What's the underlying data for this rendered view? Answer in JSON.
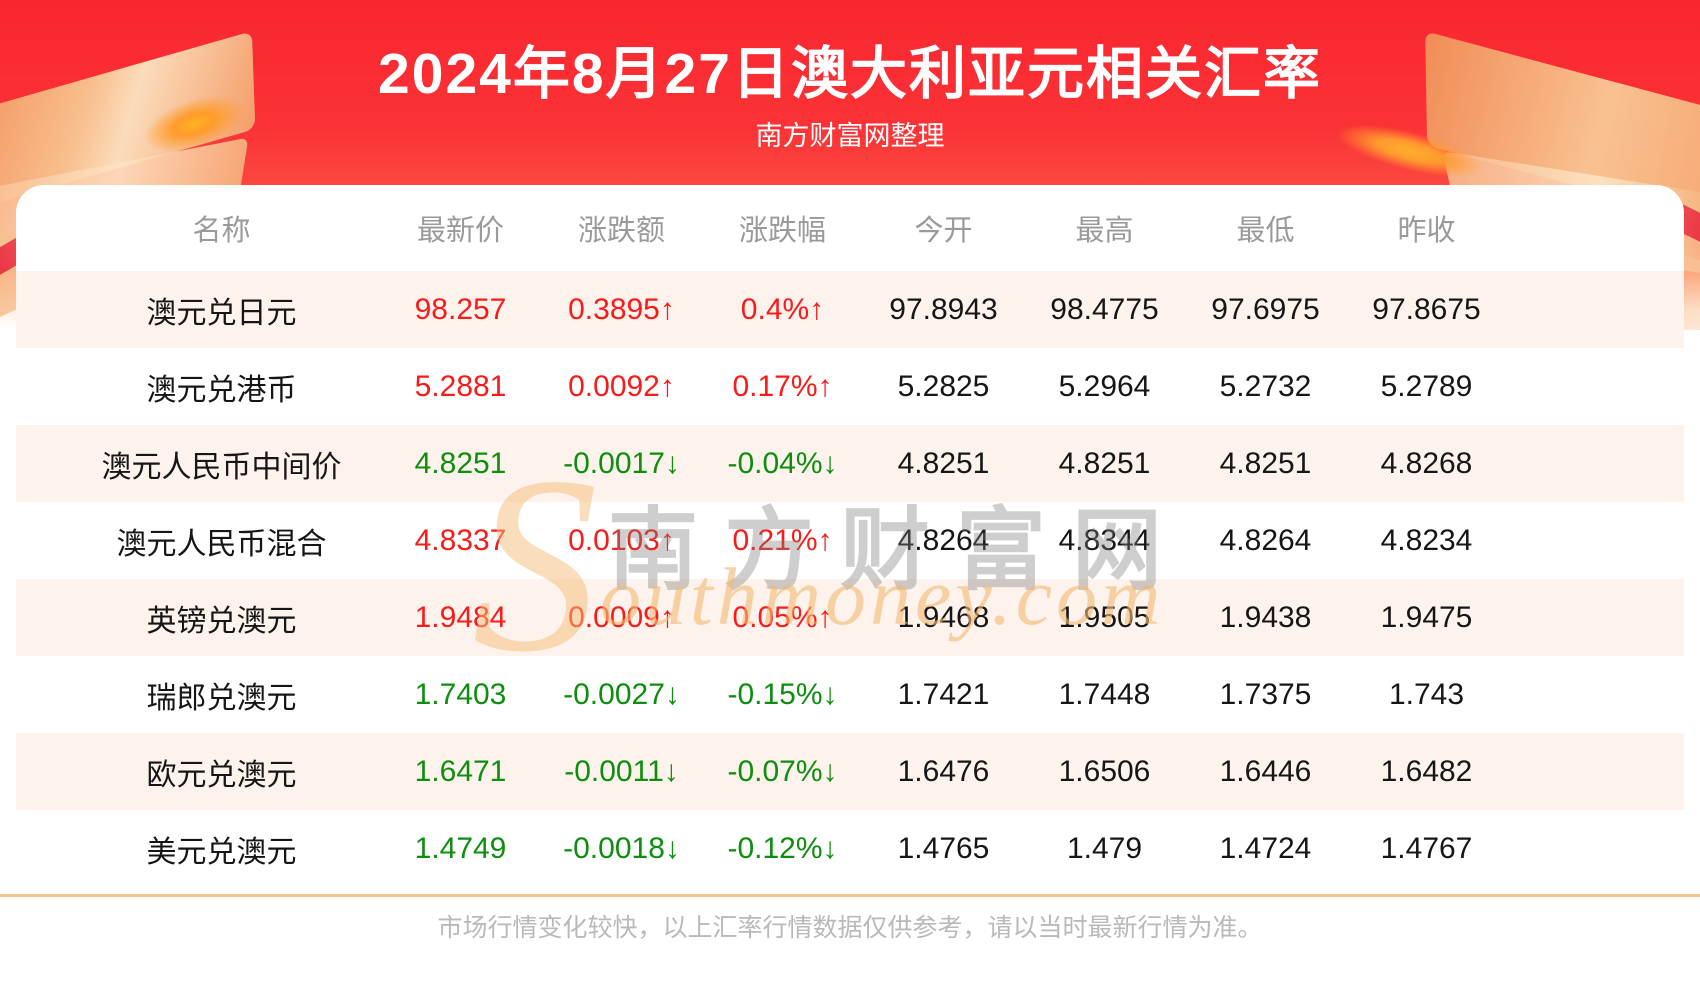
{
  "chart_data": {
    "type": "table",
    "title": "2024年8月27日澳大利亚元相关汇率",
    "subtitle": "南方财富网整理",
    "columns": [
      "名称",
      "最新价",
      "涨跌额",
      "涨跌幅",
      "今开",
      "最高",
      "最低",
      "昨收"
    ],
    "rows": [
      {
        "name": "澳元兑日元",
        "direction": "up",
        "values": [
          "98.257",
          "0.3895↑",
          "0.4%↑",
          "97.8943",
          "98.4775",
          "97.6975",
          "97.8675"
        ]
      },
      {
        "name": "澳元兑港币",
        "direction": "up",
        "values": [
          "5.2881",
          "0.0092↑",
          "0.17%↑",
          "5.2825",
          "5.2964",
          "5.2732",
          "5.2789"
        ]
      },
      {
        "name": "澳元人民币中间价",
        "direction": "down",
        "values": [
          "4.8251",
          "-0.0017↓",
          "-0.04%↓",
          "4.8251",
          "4.8251",
          "4.8251",
          "4.8268"
        ]
      },
      {
        "name": "澳元人民币混合",
        "direction": "up",
        "values": [
          "4.8337",
          "0.0103↑",
          "0.21%↑",
          "4.8264",
          "4.8344",
          "4.8264",
          "4.8234"
        ]
      },
      {
        "name": "英镑兑澳元",
        "direction": "up",
        "values": [
          "1.9484",
          "0.0009↑",
          "0.05%↑",
          "1.9468",
          "1.9505",
          "1.9438",
          "1.9475"
        ]
      },
      {
        "name": "瑞郎兑澳元",
        "direction": "down",
        "values": [
          "1.7403",
          "-0.0027↓",
          "-0.15%↓",
          "1.7421",
          "1.7448",
          "1.7375",
          "1.743"
        ]
      },
      {
        "name": "欧元兑澳元",
        "direction": "down",
        "values": [
          "1.6471",
          "-0.0011↓",
          "-0.07%↓",
          "1.6476",
          "1.6506",
          "1.6446",
          "1.6482"
        ]
      },
      {
        "name": "美元兑澳元",
        "direction": "down",
        "values": [
          "1.4749",
          "-0.0018↓",
          "-0.12%↓",
          "1.4765",
          "1.479",
          "1.4724",
          "1.4767"
        ]
      }
    ],
    "footer_note": "市场行情变化较快，以上汇率行情数据仅供参考，请以当时最新行情为准。"
  },
  "watermark": {
    "initial": "S",
    "cn": "南方财富网",
    "en": "outhmoney.com"
  },
  "colors": {
    "banner_red_top": "#f9262f",
    "banner_red_bottom": "#fd8058",
    "gold_decor": "#f8c491",
    "up_red": "#f91a1a",
    "down_green": "#0e8e0e",
    "row_alt_pink": "#fdf3ec",
    "header_gray": "#9a9a9a",
    "text_black": "#161616",
    "divider_tan": "#f6c48f",
    "footer_gray": "#b9b9b9"
  }
}
